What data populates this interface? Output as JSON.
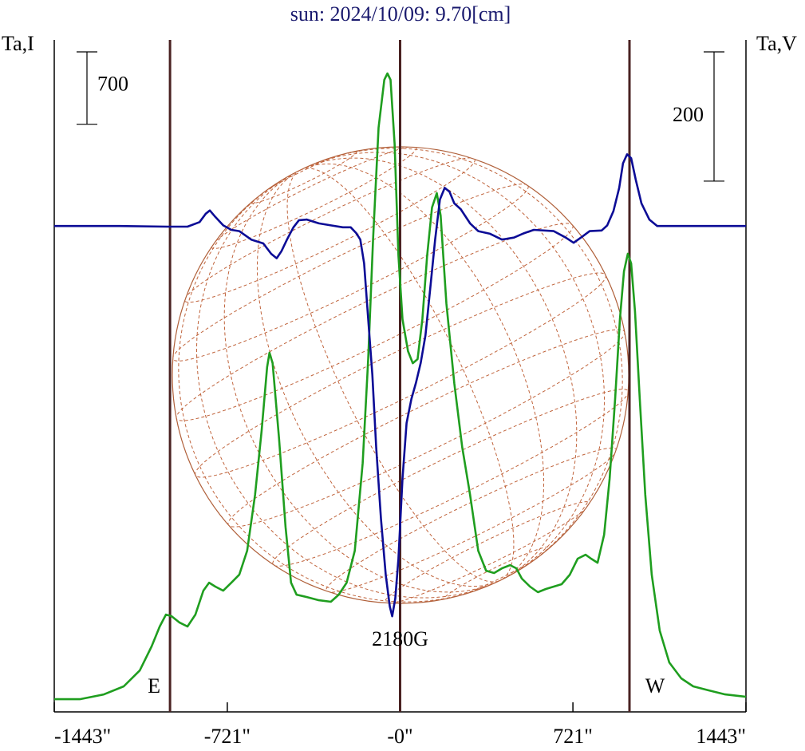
{
  "chart_data": {
    "type": "line",
    "title": "sun: 2024/10/09: 9.70[cm]",
    "y_label": "Ta,I",
    "y2_label": "Ta,V",
    "xlim": [
      -1443,
      1443
    ],
    "xticks": [
      {
        "value": -1443,
        "label": "-1443\""
      },
      {
        "value": -721,
        "label": "-721\""
      },
      {
        "value": 0,
        "label": "-0\""
      },
      {
        "value": 721,
        "label": "721\""
      },
      {
        "value": 1443,
        "label": "1443\""
      }
    ],
    "ylim": [
      -100,
      6400
    ],
    "y2lim": [
      -750,
      290
    ],
    "y_scale_bar": 700,
    "y2_scale_bar": 200,
    "markers": [
      {
        "x": -960,
        "label": "E"
      },
      {
        "x": 0,
        "label": "2180G"
      },
      {
        "x": 957,
        "label": "W"
      }
    ],
    "series": [
      {
        "color": "#1f9e1f",
        "x": [
          -1443,
          -1336,
          -1236,
          -1153,
          -1086,
          -1037,
          -1003,
          -977,
          -954,
          -920,
          -887,
          -854,
          -821,
          -797,
          -771,
          -738,
          -704,
          -671,
          -638,
          -605,
          -578,
          -555,
          -545,
          -532,
          -505,
          -478,
          -455,
          -432,
          -389,
          -339,
          -289,
          -256,
          -223,
          -189,
          -156,
          -133,
          -113,
          -90,
          -66,
          -53,
          -40,
          -23,
          -7,
          10,
          33,
          53,
          73,
          93,
          113,
          133,
          153,
          169,
          193,
          226,
          259,
          292,
          326,
          359,
          392,
          425,
          459,
          485,
          508,
          542,
          575,
          608,
          641,
          674,
          708,
          741,
          774,
          797,
          824,
          851,
          874,
          897,
          917,
          934,
          950,
          964,
          980,
          1000,
          1023,
          1050,
          1083,
          1123,
          1173,
          1223,
          1289,
          1356,
          1443
        ],
        "values": [
          23,
          23,
          69,
          147,
          301,
          533,
          726,
          841,
          826,
          764,
          726,
          841,
          1073,
          1150,
          1112,
          1073,
          1150,
          1227,
          1459,
          2000,
          2617,
          3235,
          3374,
          3273,
          2540,
          1690,
          1150,
          1034,
          1011,
          980,
          965,
          1034,
          1150,
          1459,
          2308,
          3312,
          4470,
          5551,
          6014,
          6076,
          6014,
          5396,
          4315,
          3698,
          3389,
          3273,
          3312,
          3698,
          4315,
          4779,
          4918,
          4701,
          3852,
          3080,
          2463,
          2000,
          1459,
          1266,
          1243,
          1289,
          1320,
          1289,
          1189,
          1112,
          1058,
          1089,
          1112,
          1135,
          1227,
          1382,
          1420,
          1382,
          1343,
          1613,
          2154,
          2926,
          3698,
          4161,
          4331,
          4238,
          3775,
          2926,
          2000,
          1227,
          687,
          378,
          224,
          147,
          108,
          69,
          46
        ]
      },
      {
        "color": "#0c0c96",
        "axis": "y2",
        "x": [
          -1443,
          -1170,
          -970,
          -887,
          -837,
          -811,
          -794,
          -771,
          -738,
          -704,
          -671,
          -621,
          -571,
          -538,
          -515,
          -495,
          -472,
          -445,
          -422,
          -389,
          -339,
          -289,
          -239,
          -206,
          -183,
          -166,
          -150,
          -133,
          -116,
          -100,
          -80,
          -60,
          -43,
          -33,
          -20,
          -7,
          10,
          27,
          47,
          66,
          86,
          106,
          126,
          146,
          166,
          186,
          206,
          226,
          253,
          292,
          326,
          375,
          425,
          475,
          518,
          558,
          641,
          691,
          724,
          758,
          791,
          841,
          864,
          890,
          914,
          930,
          947,
          964,
          983,
          1007,
          1040,
          1073,
          1189,
          1443
        ],
        "values": [
          2,
          2,
          1,
          1,
          8,
          21,
          26,
          16,
          3,
          -4,
          -6,
          -19,
          -25,
          -41,
          -48,
          -37,
          -19,
          0,
          11,
          12,
          6,
          3,
          0,
          0,
          -9,
          -19,
          -56,
          -142,
          -228,
          -340,
          -451,
          -538,
          -587,
          -602,
          -574,
          -513,
          -389,
          -303,
          -266,
          -241,
          -210,
          -167,
          -93,
          -19,
          43,
          61,
          55,
          37,
          28,
          6,
          -6,
          -10,
          -19,
          -16,
          -9,
          -4,
          -6,
          -16,
          -24,
          -15,
          -6,
          -5,
          3,
          25,
          61,
          99,
          113,
          107,
          74,
          37,
          12,
          2,
          2,
          2
        ]
      }
    ]
  }
}
